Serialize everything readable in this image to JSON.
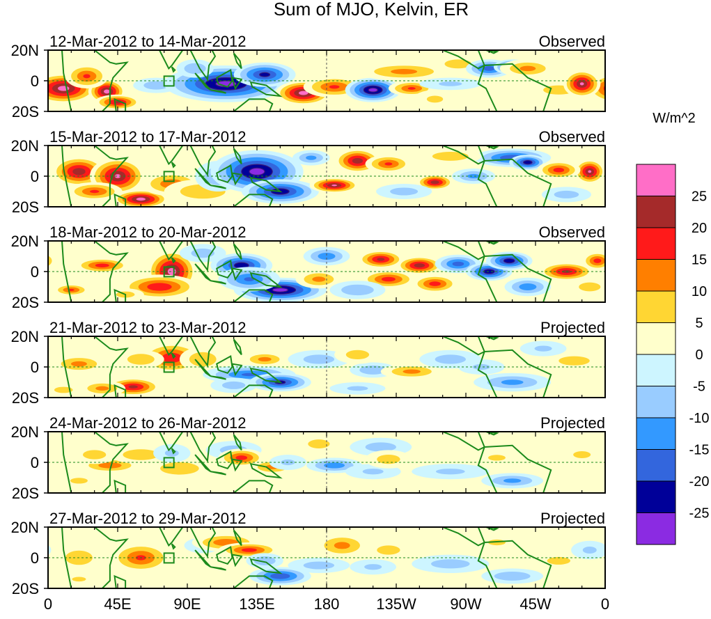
{
  "chart_data": {
    "type": "heatmap",
    "title": "Sum of MJO, Kelvin, ER",
    "units": "W/m^2",
    "x_ticks": [
      "0",
      "45E",
      "90E",
      "135E",
      "180",
      "135W",
      "90W",
      "45W",
      "0"
    ],
    "y_ticks": [
      "20N",
      "0",
      "20S"
    ],
    "xlim": [
      0,
      360
    ],
    "ylim": [
      -20,
      20
    ],
    "colorbar": {
      "labels": [
        "25",
        "20",
        "15",
        "10",
        "5",
        "0",
        "-5",
        "-10",
        "-15",
        "-20",
        "-25"
      ],
      "colors": [
        "#ff6ec7",
        "#a52a2a",
        "#ff1a1a",
        "#ff7f00",
        "#ffd633",
        "#ffffcc",
        "#cdf5ff",
        "#99ccff",
        "#3399ff",
        "#3366dd",
        "#000099",
        "#8b2be2"
      ]
    },
    "panels": [
      {
        "date_range": "12-Mar-2012 to 14-Mar-2012",
        "kind": "Observed",
        "blobs": [
          [
            10,
            -5,
            22,
            10,
            28
          ],
          [
            38,
            -7,
            12,
            8,
            28
          ],
          [
            25,
            3,
            14,
            8,
            16
          ],
          [
            45,
            -14,
            15,
            5,
            22
          ],
          [
            70,
            -3,
            15,
            5,
            -9
          ],
          [
            115,
            -2,
            40,
            12,
            -28
          ],
          [
            140,
            4,
            20,
            8,
            -22
          ],
          [
            165,
            -8,
            18,
            8,
            28
          ],
          [
            185,
            -4,
            20,
            7,
            16
          ],
          [
            210,
            -6,
            18,
            8,
            -28
          ],
          [
            235,
            -5,
            15,
            5,
            16
          ],
          [
            250,
            -12,
            14,
            6,
            6
          ],
          [
            230,
            6,
            30,
            6,
            12
          ],
          [
            265,
            11,
            15,
            5,
            10
          ],
          [
            285,
            8,
            15,
            6,
            -18
          ],
          [
            300,
            9,
            12,
            5,
            -24
          ],
          [
            310,
            8,
            18,
            6,
            12
          ],
          [
            330,
            -6,
            20,
            6,
            8
          ],
          [
            345,
            -2,
            12,
            9,
            26
          ],
          [
            95,
            8,
            12,
            6,
            -10
          ],
          [
            260,
            -2,
            20,
            4,
            -6
          ]
        ]
      },
      {
        "date_range": "15-Mar-2012 to 17-Mar-2012",
        "kind": "Observed",
        "blobs": [
          [
            20,
            3,
            18,
            10,
            24
          ],
          [
            45,
            0,
            18,
            12,
            26
          ],
          [
            30,
            -10,
            18,
            6,
            16
          ],
          [
            60,
            -15,
            18,
            6,
            28
          ],
          [
            80,
            -5,
            20,
            8,
            14
          ],
          [
            100,
            -10,
            25,
            8,
            10
          ],
          [
            110,
            0,
            15,
            10,
            -10
          ],
          [
            135,
            3,
            30,
            14,
            -28
          ],
          [
            150,
            -10,
            25,
            8,
            -24
          ],
          [
            185,
            -6,
            16,
            5,
            26
          ],
          [
            200,
            10,
            15,
            8,
            24
          ],
          [
            220,
            8,
            15,
            6,
            16
          ],
          [
            250,
            -4,
            12,
            5,
            24
          ],
          [
            275,
            0,
            14,
            5,
            -12
          ],
          [
            300,
            12,
            25,
            6,
            -20
          ],
          [
            310,
            9,
            12,
            5,
            -24
          ],
          [
            260,
            13,
            20,
            5,
            10
          ],
          [
            350,
            3,
            10,
            8,
            26
          ],
          [
            330,
            4,
            14,
            6,
            18
          ],
          [
            230,
            -10,
            18,
            5,
            -8
          ],
          [
            170,
            12,
            12,
            5,
            -12
          ],
          [
            335,
            -12,
            16,
            5,
            -8
          ]
        ]
      },
      {
        "date_range": "18-Mar-2012 to 20-Mar-2012",
        "kind": "Observed",
        "blobs": [
          [
            35,
            4,
            18,
            5,
            18
          ],
          [
            80,
            0,
            16,
            14,
            28
          ],
          [
            72,
            -10,
            25,
            8,
            20
          ],
          [
            125,
            4,
            20,
            8,
            -24
          ],
          [
            150,
            -12,
            30,
            8,
            -28
          ],
          [
            130,
            -5,
            20,
            8,
            -16
          ],
          [
            175,
            -5,
            15,
            6,
            12
          ],
          [
            215,
            8,
            15,
            6,
            22
          ],
          [
            240,
            4,
            15,
            6,
            24
          ],
          [
            220,
            -5,
            18,
            6,
            18
          ],
          [
            250,
            -8,
            15,
            6,
            18
          ],
          [
            265,
            5,
            15,
            6,
            -18
          ],
          [
            285,
            0,
            15,
            6,
            -24
          ],
          [
            298,
            7,
            15,
            6,
            -24
          ],
          [
            310,
            -10,
            15,
            6,
            -14
          ],
          [
            335,
            0,
            18,
            6,
            22
          ],
          [
            355,
            7,
            10,
            6,
            18
          ],
          [
            180,
            10,
            15,
            6,
            -14
          ],
          [
            200,
            -12,
            18,
            6,
            -10
          ],
          [
            50,
            -15,
            12,
            4,
            8
          ],
          [
            15,
            -12,
            12,
            4,
            16
          ],
          [
            100,
            12,
            15,
            6,
            -8
          ],
          [
            350,
            -10,
            12,
            5,
            10
          ]
        ]
      },
      {
        "date_range": "21-Mar-2012 to 23-Mar-2012",
        "kind": "Projected",
        "blobs": [
          [
            20,
            2,
            18,
            6,
            12
          ],
          [
            55,
            -13,
            18,
            6,
            22
          ],
          [
            35,
            -14,
            15,
            5,
            12
          ],
          [
            80,
            6,
            20,
            10,
            20
          ],
          [
            60,
            5,
            15,
            6,
            10
          ],
          [
            100,
            5,
            15,
            8,
            10
          ],
          [
            130,
            -5,
            30,
            6,
            -16
          ],
          [
            150,
            -10,
            20,
            6,
            -22
          ],
          [
            140,
            5,
            15,
            5,
            12
          ],
          [
            120,
            -12,
            15,
            5,
            -8
          ],
          [
            175,
            5,
            20,
            6,
            -8
          ],
          [
            210,
            -2,
            15,
            5,
            -10
          ],
          [
            200,
            8,
            15,
            6,
            8
          ],
          [
            235,
            -3,
            20,
            5,
            12
          ],
          [
            260,
            5,
            20,
            6,
            -8
          ],
          [
            300,
            -10,
            25,
            6,
            -12
          ],
          [
            280,
            0,
            15,
            5,
            -6
          ],
          [
            340,
            4,
            20,
            6,
            8
          ],
          [
            320,
            12,
            15,
            5,
            -6
          ],
          [
            200,
            -14,
            18,
            4,
            -6
          ],
          [
            10,
            -15,
            12,
            4,
            8
          ]
        ]
      },
      {
        "date_range": "24-Mar-2012 to 26-Mar-2012",
        "kind": "Projected",
        "blobs": [
          [
            40,
            -2,
            20,
            5,
            14
          ],
          [
            30,
            5,
            15,
            6,
            8
          ],
          [
            60,
            5,
            20,
            6,
            10
          ],
          [
            85,
            -4,
            25,
            8,
            8
          ],
          [
            80,
            6,
            12,
            6,
            -6
          ],
          [
            120,
            8,
            18,
            6,
            -8
          ],
          [
            125,
            3,
            15,
            6,
            18
          ],
          [
            145,
            -3,
            15,
            5,
            12
          ],
          [
            155,
            0,
            12,
            5,
            -6
          ],
          [
            185,
            -2,
            18,
            5,
            -14
          ],
          [
            210,
            -6,
            18,
            5,
            -6
          ],
          [
            215,
            10,
            20,
            6,
            -8
          ],
          [
            220,
            2,
            15,
            6,
            8
          ],
          [
            260,
            -6,
            25,
            5,
            -6
          ],
          [
            300,
            -12,
            20,
            5,
            -12
          ],
          [
            290,
            3,
            15,
            5,
            6
          ],
          [
            320,
            -2,
            12,
            4,
            4
          ],
          [
            345,
            5,
            15,
            6,
            6
          ],
          [
            20,
            -12,
            15,
            5,
            6
          ],
          [
            175,
            12,
            12,
            5,
            10
          ]
        ]
      },
      {
        "date_range": "27-Mar-2012 to 29-Mar-2012",
        "kind": "Projected",
        "blobs": [
          [
            60,
            0,
            20,
            10,
            16
          ],
          [
            20,
            0,
            15,
            8,
            10
          ],
          [
            100,
            8,
            12,
            5,
            -6
          ],
          [
            115,
            10,
            22,
            6,
            14
          ],
          [
            130,
            5,
            20,
            5,
            18
          ],
          [
            150,
            -12,
            20,
            6,
            -20
          ],
          [
            140,
            -2,
            12,
            5,
            -10
          ],
          [
            175,
            -5,
            20,
            5,
            -8
          ],
          [
            190,
            8,
            18,
            8,
            12
          ],
          [
            210,
            -6,
            15,
            5,
            -6
          ],
          [
            220,
            5,
            15,
            6,
            8
          ],
          [
            260,
            -4,
            25,
            6,
            -8
          ],
          [
            300,
            -12,
            20,
            5,
            -10
          ],
          [
            330,
            -2,
            15,
            5,
            8
          ],
          [
            290,
            10,
            15,
            5,
            6
          ],
          [
            350,
            5,
            12,
            6,
            -6
          ],
          [
            20,
            -14,
            12,
            4,
            6
          ]
        ]
      }
    ]
  }
}
